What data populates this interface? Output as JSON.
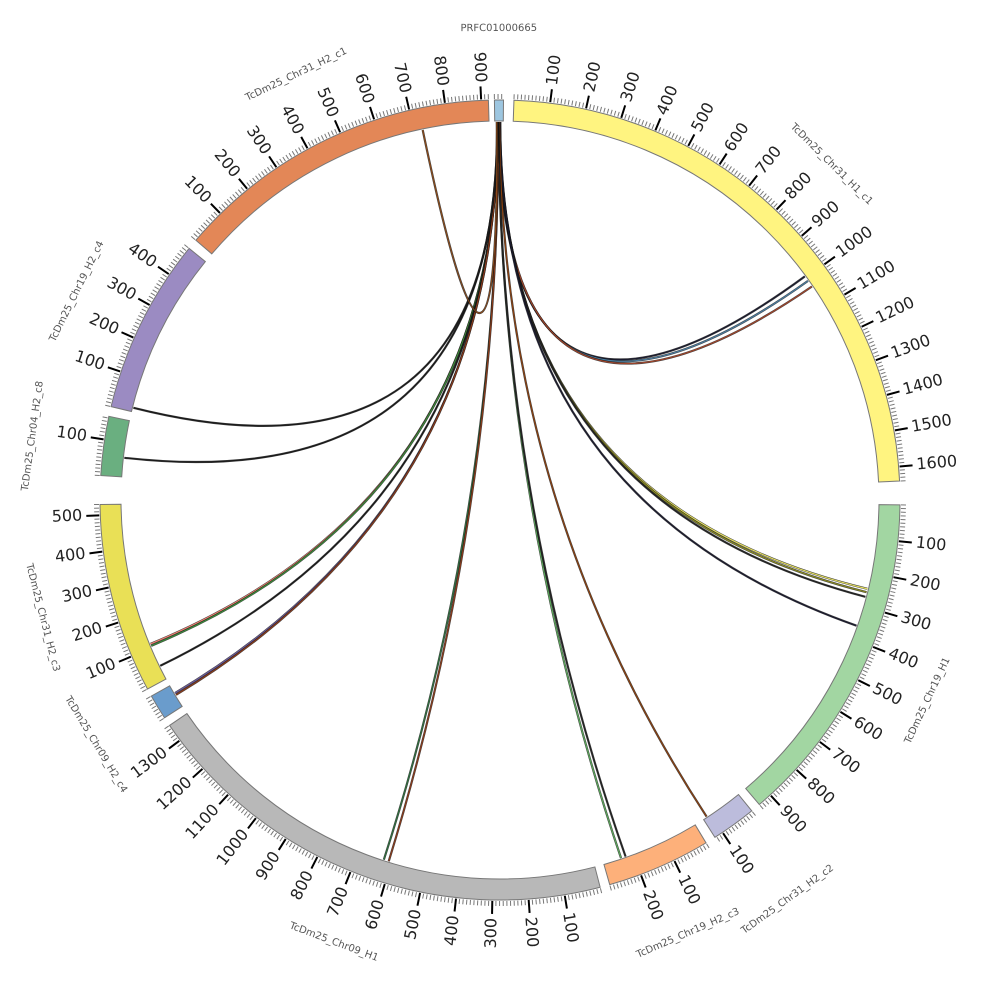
{
  "diagram": {
    "type": "circos",
    "tick_major_every": 100,
    "tick_minor_every": 10,
    "chromosomes": [
      {
        "name": "PRFC01000665",
        "length": 25,
        "color": "#9dc6e0"
      },
      {
        "name": "TcDm25_Chr31_H1_c1",
        "length": 1640,
        "color": "#fff480"
      },
      {
        "name": "TcDm25_Chr19_H1",
        "length": 940,
        "color": "#a2d6a2"
      },
      {
        "name": "TcDm25_Chr31_H2_c2",
        "length": 125,
        "color": "#bcbcdc"
      },
      {
        "name": "TcDm25_Chr19_H2_c3",
        "length": 290,
        "color": "#fdb07a"
      },
      {
        "name": "TcDm25_Chr09_H1",
        "length": 1350,
        "color": "#b8b8b8"
      },
      {
        "name": "TcDm25_Chr09_H2_c4",
        "length": 70,
        "color": "#6a9ccc"
      },
      {
        "name": "TcDm25_Chr31_H2_c3",
        "length": 530,
        "color": "#e9e056"
      },
      {
        "name": "TcDm25_Chr04_H2_c8",
        "length": 165,
        "color": "#6aaf80"
      },
      {
        "name": "TcDm25_Chr19_H2_c4",
        "length": 490,
        "color": "#9b8bc2"
      },
      {
        "name": "TcDm25_Chr31_H2_c1",
        "length": 920,
        "color": "#e38757"
      }
    ],
    "links": [
      {
        "from": 12,
        "to": "TcDm25_Chr31_H1_c1",
        "pos": 995,
        "color": "#1a1a2e"
      },
      {
        "from": 13,
        "to": "TcDm25_Chr31_H1_c1",
        "pos": 1011,
        "color": "#4a7ca0"
      },
      {
        "from": 14,
        "to": "TcDm25_Chr31_H1_c1",
        "pos": 1031,
        "color": "#a0442a"
      },
      {
        "from": 15,
        "to": "TcDm25_Chr19_H1",
        "pos": 248,
        "color": "#e6e060"
      },
      {
        "from": 15,
        "to": "TcDm25_Chr19_H1",
        "pos": 258,
        "color": "#8a8a20"
      },
      {
        "from": 16,
        "to": "TcDm25_Chr19_H1",
        "pos": 272,
        "color": "#222222"
      },
      {
        "from": 16,
        "to": "TcDm25_Chr19_H1",
        "pos": 360,
        "color": "#1a1a2e"
      },
      {
        "from": 14,
        "to": "TcDm25_Chr31_H2_c2",
        "pos": 113,
        "color": "#8a4010"
      },
      {
        "from": 11,
        "to": "TcDm25_Chr19_H2_c3",
        "pos": 237,
        "color": "#5aa85a"
      },
      {
        "from": 11,
        "to": "TcDm25_Chr19_H2_c3",
        "pos": 223,
        "color": "#222222"
      },
      {
        "from": 10,
        "to": "TcDm25_Chr09_H1",
        "pos": 623,
        "color": "#2e6e3e"
      },
      {
        "from": 10,
        "to": "TcDm25_Chr09_H1",
        "pos": 608,
        "color": "#8a3a1a"
      },
      {
        "from": 9,
        "to": "TcDm25_Chr31_H2_c3",
        "pos": 112,
        "color": "#f08070"
      },
      {
        "from": 9,
        "to": "TcDm25_Chr31_H2_c3",
        "pos": 106,
        "color": "#3a8a3a"
      },
      {
        "from": 9,
        "to": "TcDm25_Chr31_H2_c3",
        "pos": 42,
        "color": "#1a1a1a"
      },
      {
        "from": 8,
        "to": "TcDm25_Chr09_H2_c4",
        "pos": 44,
        "color": "#6a5a9a"
      },
      {
        "from": 8,
        "to": "TcDm25_Chr09_H2_c4",
        "pos": 38,
        "color": "#8a3a1a"
      },
      {
        "from": 7,
        "to": "TcDm25_Chr04_H2_c8",
        "pos": 56,
        "color": "#1a1a1a"
      },
      {
        "from": 7,
        "to": "TcDm25_Chr19_H2_c4",
        "pos": 12,
        "color": "#1a1a1a"
      },
      {
        "from": 6,
        "to": "TcDm25_Chr31_H2_c1",
        "pos": 725,
        "color": "#8a4a1a"
      }
    ]
  }
}
